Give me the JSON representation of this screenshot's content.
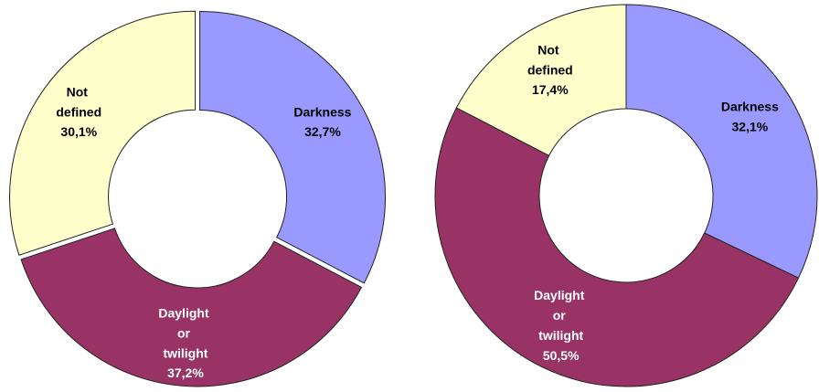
{
  "chart_data": [
    {
      "type": "donut",
      "categories": [
        "Darkness",
        "Daylight or twilight",
        "Not defined"
      ],
      "values": [
        32.7,
        37.2,
        30.1
      ],
      "value_labels": [
        "32,7%",
        "37,2%",
        "30,1%"
      ],
      "colors": [
        "#9999ff",
        "#993366",
        "#ffffcc"
      ]
    },
    {
      "type": "donut",
      "categories": [
        "Darkness",
        "Daylight or twilight",
        "Not defined"
      ],
      "values": [
        32.1,
        50.5,
        17.4
      ],
      "value_labels": [
        "32,1%",
        "50,5%",
        "17,4%"
      ],
      "colors": [
        "#9999ff",
        "#993366",
        "#ffffcc"
      ]
    }
  ]
}
